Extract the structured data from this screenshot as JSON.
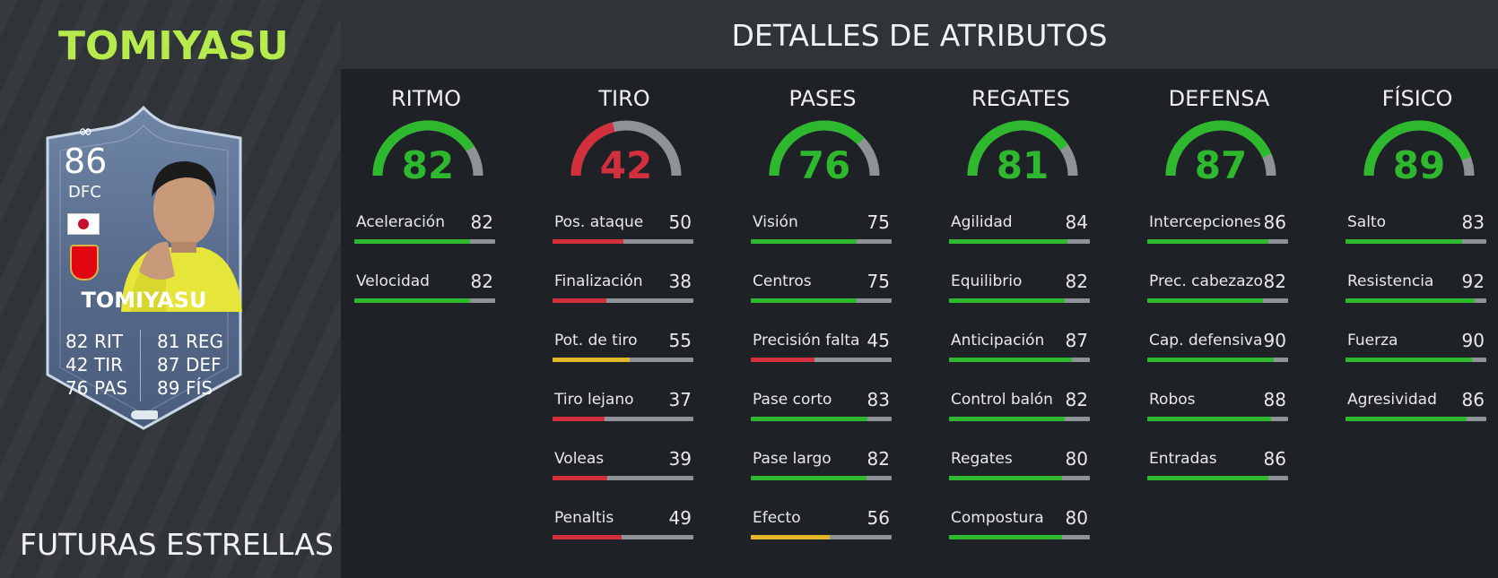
{
  "player": {
    "name": "TOMIYASU",
    "promo": "FUTURAS ESTRELLAS"
  },
  "card": {
    "rating": "86",
    "position": "DFC",
    "infinity_symbol": "∞",
    "name": "TOMIYASU",
    "stats_left": [
      {
        "value": "82",
        "label": "RIT"
      },
      {
        "value": "42",
        "label": "TIR"
      },
      {
        "value": "76",
        "label": "PAS"
      }
    ],
    "stats_right": [
      {
        "value": "81",
        "label": "REG"
      },
      {
        "value": "87",
        "label": "DEF"
      },
      {
        "value": "89",
        "label": "FÍS"
      }
    ]
  },
  "header": {
    "title": "DETALLES DE ATRIBUTOS"
  },
  "colors": {
    "green": "#2eb82e",
    "red": "#d32f3c",
    "yellow": "#e3b82b",
    "track": "#8e9398"
  },
  "categories": [
    {
      "title": "RITMO",
      "value": 82,
      "color": "green",
      "attributes": [
        {
          "label": "Aceleración",
          "value": 82,
          "color": "green"
        },
        {
          "label": "Velocidad",
          "value": 82,
          "color": "green"
        }
      ]
    },
    {
      "title": "TIRO",
      "value": 42,
      "color": "red",
      "attributes": [
        {
          "label": "Pos. ataque",
          "value": 50,
          "color": "red"
        },
        {
          "label": "Finalización",
          "value": 38,
          "color": "red"
        },
        {
          "label": "Pot. de tiro",
          "value": 55,
          "color": "yellow"
        },
        {
          "label": "Tiro lejano",
          "value": 37,
          "color": "red"
        },
        {
          "label": "Voleas",
          "value": 39,
          "color": "red"
        },
        {
          "label": "Penaltis",
          "value": 49,
          "color": "red"
        }
      ]
    },
    {
      "title": "PASES",
      "value": 76,
      "color": "green",
      "attributes": [
        {
          "label": "Visión",
          "value": 75,
          "color": "green"
        },
        {
          "label": "Centros",
          "value": 75,
          "color": "green"
        },
        {
          "label": "Precisión falta",
          "value": 45,
          "color": "red"
        },
        {
          "label": "Pase corto",
          "value": 83,
          "color": "green"
        },
        {
          "label": "Pase largo",
          "value": 82,
          "color": "green"
        },
        {
          "label": "Efecto",
          "value": 56,
          "color": "yellow"
        }
      ]
    },
    {
      "title": "REGATES",
      "value": 81,
      "color": "green",
      "attributes": [
        {
          "label": "Agilidad",
          "value": 84,
          "color": "green"
        },
        {
          "label": "Equilibrio",
          "value": 82,
          "color": "green"
        },
        {
          "label": "Anticipación",
          "value": 87,
          "color": "green"
        },
        {
          "label": "Control balón",
          "value": 82,
          "color": "green"
        },
        {
          "label": "Regates",
          "value": 80,
          "color": "green"
        },
        {
          "label": "Compostura",
          "value": 80,
          "color": "green"
        }
      ]
    },
    {
      "title": "DEFENSA",
      "value": 87,
      "color": "green",
      "attributes": [
        {
          "label": "Intercepciones",
          "value": 86,
          "color": "green"
        },
        {
          "label": "Prec. cabezazo",
          "value": 82,
          "color": "green"
        },
        {
          "label": "Cap. defensiva",
          "value": 90,
          "color": "green"
        },
        {
          "label": "Robos",
          "value": 88,
          "color": "green"
        },
        {
          "label": "Entradas",
          "value": 86,
          "color": "green"
        }
      ]
    },
    {
      "title": "FÍSICO",
      "value": 89,
      "color": "green",
      "attributes": [
        {
          "label": "Salto",
          "value": 83,
          "color": "green"
        },
        {
          "label": "Resistencia",
          "value": 92,
          "color": "green"
        },
        {
          "label": "Fuerza",
          "value": 90,
          "color": "green"
        },
        {
          "label": "Agresividad",
          "value": 86,
          "color": "green"
        }
      ]
    }
  ]
}
